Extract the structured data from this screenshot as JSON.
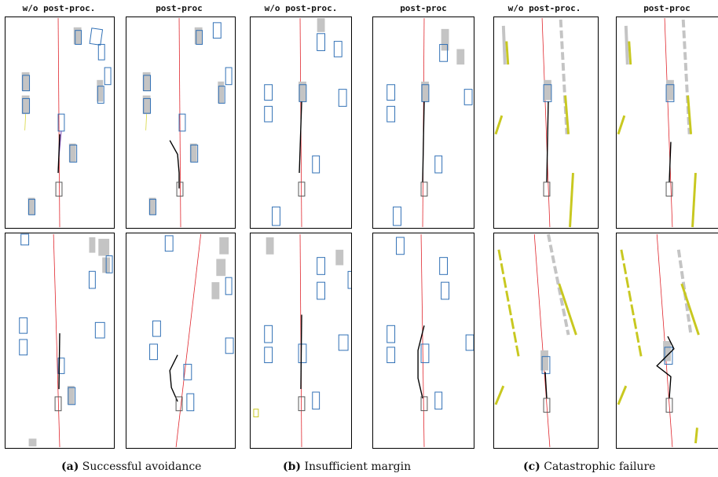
{
  "headers": [
    "w/o post-proc.",
    "post-proc",
    "w/o post-proc.",
    "post-proc",
    "w/o post-proc.",
    "post-proc"
  ],
  "captions": [
    {
      "label": "(a)",
      "text": "Successful avoidance"
    },
    {
      "label": "(b)",
      "text": "Insufficient margin"
    },
    {
      "label": "(c)",
      "text": "Catastrophic failure"
    }
  ],
  "colors": {
    "reference_line": "#e0232a",
    "vehicle_box": "#2f6fb5",
    "ground_truth_shadow": "#c4c4c4",
    "lane_marker": "#c8c820",
    "planned_trajectory": "#000000",
    "ego_box": "#555555",
    "prediction_green": "#3cb44b",
    "prediction_yellow": "#d6d63a",
    "prediction_purple": "#7b3fb5"
  }
}
